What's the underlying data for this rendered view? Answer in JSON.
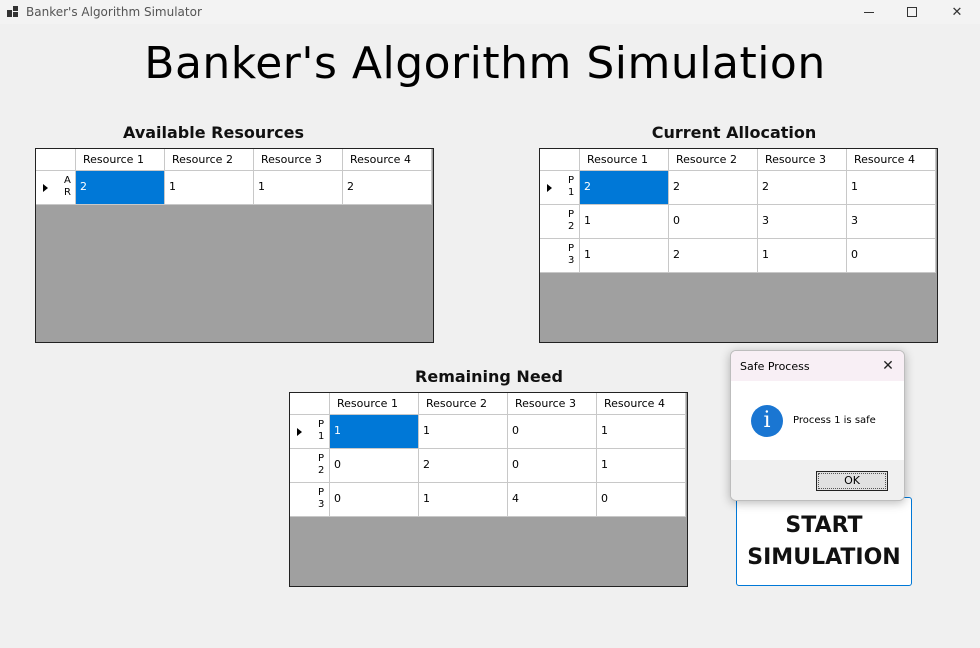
{
  "window": {
    "title": "Banker's Algorithm Simulator",
    "min_icon": "minimize-icon",
    "max_icon": "maximize-icon",
    "close_glyph": "✕"
  },
  "main_title": "Banker's Algorithm Simulation",
  "available": {
    "label": "Available Resources",
    "columns": [
      "Resource 1",
      "Resource 2",
      "Resource 3",
      "Resource 4"
    ],
    "rows": [
      {
        "label": "AR",
        "values": [
          "2",
          "1",
          "1",
          "2"
        ]
      }
    ]
  },
  "allocation": {
    "label": "Current Allocation",
    "columns": [
      "Resource 1",
      "Resource 2",
      "Resource 3",
      "Resource 4"
    ],
    "rows": [
      {
        "label": "P1",
        "values": [
          "2",
          "2",
          "2",
          "1"
        ]
      },
      {
        "label": "P2",
        "values": [
          "1",
          "0",
          "3",
          "3"
        ]
      },
      {
        "label": "P3",
        "values": [
          "1",
          "2",
          "1",
          "0"
        ]
      }
    ]
  },
  "need": {
    "label": "Remaining Need",
    "columns": [
      "Resource 1",
      "Resource 2",
      "Resource 3",
      "Resource 4"
    ],
    "rows": [
      {
        "label": "P1",
        "values": [
          "1",
          "1",
          "0",
          "1"
        ]
      },
      {
        "label": "P2",
        "values": [
          "0",
          "2",
          "0",
          "1"
        ]
      },
      {
        "label": "P3",
        "values": [
          "0",
          "1",
          "4",
          "0"
        ]
      }
    ]
  },
  "start_button": {
    "line1": "START",
    "line2": "SIMULATION"
  },
  "dialog": {
    "title": "Safe Process",
    "message": "Process 1 is safe",
    "ok_label": "OK",
    "close_glyph": "✕",
    "icon_glyph": "i",
    "icon": "info-icon",
    "icon_color": "#1a76d2"
  },
  "colors": {
    "selection": "#0078d7",
    "grid_background": "#a0a0a0",
    "window_background": "#f0f0f0"
  }
}
